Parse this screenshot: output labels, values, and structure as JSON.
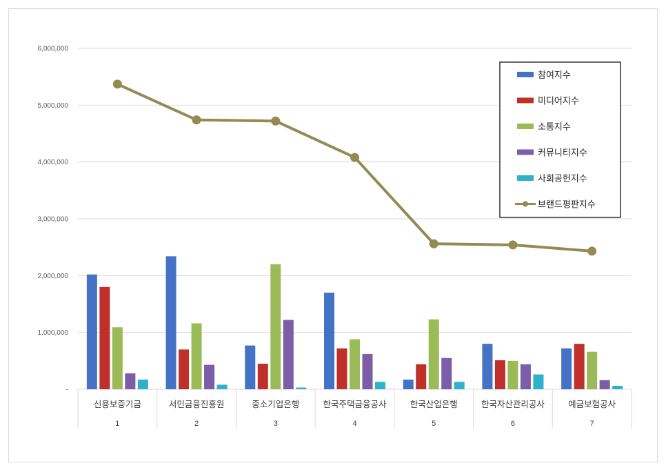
{
  "chart_data": {
    "type": "bar",
    "x_numbers": [
      "1",
      "2",
      "3",
      "4",
      "5",
      "6",
      "7"
    ],
    "categories": [
      "신용보증기금",
      "서민금융진흥원",
      "중소기업은행",
      "한국주택금융공사",
      "한국산업은행",
      "한국자산관리공사",
      "예금보험공사"
    ],
    "ylim": [
      0,
      6000000
    ],
    "yticks": [
      "-",
      "1,000,000",
      "2,000,000",
      "3,000,000",
      "4,000,000",
      "5,000,000",
      "6,000,000"
    ],
    "grid": true,
    "legend_position": "top-right",
    "series": [
      {
        "name": "참여지수",
        "kind": "bar",
        "color": "#4472c4",
        "values": [
          2020000,
          2340000,
          770000,
          1700000,
          170000,
          800000,
          720000
        ]
      },
      {
        "name": "미디어지수",
        "kind": "bar",
        "color": "#c0302b",
        "values": [
          1800000,
          700000,
          450000,
          720000,
          440000,
          510000,
          800000
        ]
      },
      {
        "name": "소통지수",
        "kind": "bar",
        "color": "#9bbb59",
        "values": [
          1090000,
          1160000,
          2200000,
          880000,
          1230000,
          500000,
          660000
        ]
      },
      {
        "name": "커뮤니티지수",
        "kind": "bar",
        "color": "#7b5ea7",
        "values": [
          280000,
          430000,
          1220000,
          620000,
          550000,
          440000,
          160000
        ]
      },
      {
        "name": "사회공헌지수",
        "kind": "bar",
        "color": "#2fb0cc",
        "values": [
          170000,
          80000,
          30000,
          130000,
          130000,
          260000,
          60000
        ]
      },
      {
        "name": "브랜드평판지수",
        "kind": "line",
        "color": "#948a54",
        "values": [
          5370000,
          4740000,
          4720000,
          4080000,
          2560000,
          2540000,
          2430000
        ]
      }
    ]
  }
}
